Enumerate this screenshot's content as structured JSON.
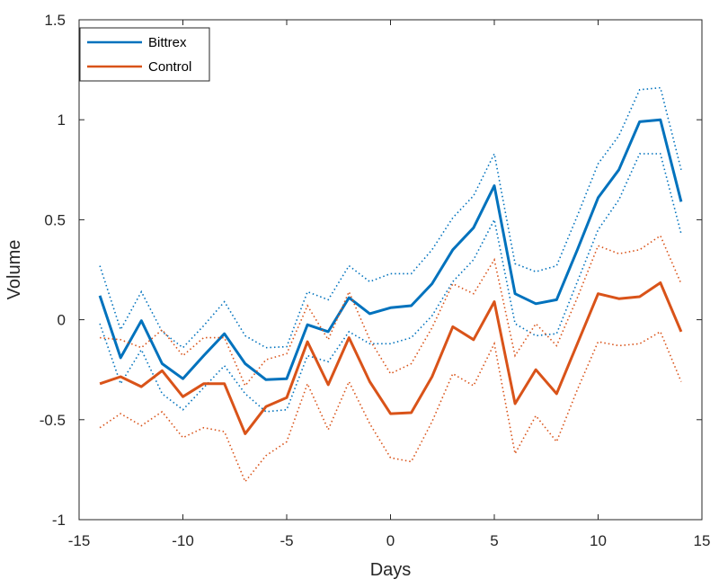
{
  "chart_data": {
    "type": "line",
    "title": "",
    "xlabel": "Days",
    "ylabel": "Volume",
    "xlim": [
      -15,
      15
    ],
    "ylim": [
      -1,
      1.5
    ],
    "xticks": [
      -15,
      -10,
      -5,
      0,
      5,
      10,
      15
    ],
    "xtick_labels": [
      "-15",
      "-10",
      "-5",
      "0",
      "5",
      "10",
      "15"
    ],
    "yticks": [
      -1,
      -0.5,
      0,
      0.5,
      1,
      1.5
    ],
    "ytick_labels": [
      "-1",
      "-0.5",
      "0",
      "0.5",
      "1",
      "1.5"
    ],
    "grid": false,
    "legend_position": "top-left",
    "x": [
      -14,
      -13,
      -12,
      -11,
      -10,
      -9,
      -8,
      -7,
      -6,
      -5,
      -4,
      -3,
      -2,
      -1,
      0,
      1,
      2,
      3,
      4,
      5,
      6,
      7,
      8,
      9,
      10,
      11,
      12,
      13,
      14
    ],
    "series": [
      {
        "name": "Bittrex",
        "color": "#0072BD",
        "values": [
          0.12,
          -0.19,
          -0.005,
          -0.22,
          -0.295,
          -0.18,
          -0.07,
          -0.22,
          -0.3,
          -0.295,
          -0.025,
          -0.06,
          0.11,
          0.03,
          0.06,
          0.07,
          0.18,
          0.35,
          0.46,
          0.67,
          0.13,
          0.08,
          0.1,
          0.35,
          0.61,
          0.75,
          0.99,
          1.0,
          0.59
        ],
        "upper": [
          0.27,
          -0.05,
          0.14,
          -0.06,
          -0.14,
          -0.03,
          0.09,
          -0.08,
          -0.14,
          -0.135,
          0.14,
          0.1,
          0.27,
          0.19,
          0.23,
          0.23,
          0.35,
          0.51,
          0.62,
          0.83,
          0.28,
          0.24,
          0.27,
          0.52,
          0.78,
          0.92,
          1.15,
          1.16,
          0.75
        ],
        "lower": [
          -0.02,
          -0.32,
          -0.15,
          -0.37,
          -0.45,
          -0.34,
          -0.23,
          -0.37,
          -0.46,
          -0.45,
          -0.18,
          -0.21,
          -0.06,
          -0.12,
          -0.12,
          -0.09,
          0.02,
          0.19,
          0.3,
          0.5,
          -0.02,
          -0.08,
          -0.07,
          0.19,
          0.45,
          0.6,
          0.83,
          0.83,
          0.43
        ]
      },
      {
        "name": "Control",
        "color": "#D95319",
        "values": [
          -0.32,
          -0.285,
          -0.335,
          -0.255,
          -0.385,
          -0.32,
          -0.32,
          -0.57,
          -0.435,
          -0.39,
          -0.11,
          -0.325,
          -0.09,
          -0.31,
          -0.47,
          -0.465,
          -0.285,
          -0.035,
          -0.1,
          0.09,
          -0.42,
          -0.25,
          -0.37,
          -0.12,
          0.13,
          0.105,
          0.115,
          0.185,
          -0.06
        ],
        "upper": [
          -0.09,
          -0.1,
          -0.14,
          -0.05,
          -0.18,
          -0.09,
          -0.09,
          -0.33,
          -0.2,
          -0.17,
          0.07,
          -0.1,
          0.14,
          -0.1,
          -0.27,
          -0.22,
          -0.04,
          0.18,
          0.13,
          0.3,
          -0.18,
          -0.02,
          -0.13,
          0.11,
          0.37,
          0.33,
          0.35,
          0.42,
          0.18
        ],
        "lower": [
          -0.54,
          -0.47,
          -0.53,
          -0.46,
          -0.59,
          -0.54,
          -0.56,
          -0.81,
          -0.68,
          -0.61,
          -0.32,
          -0.55,
          -0.31,
          -0.52,
          -0.69,
          -0.71,
          -0.51,
          -0.27,
          -0.33,
          -0.12,
          -0.67,
          -0.48,
          -0.61,
          -0.35,
          -0.11,
          -0.13,
          -0.12,
          -0.06,
          -0.31
        ]
      }
    ]
  }
}
